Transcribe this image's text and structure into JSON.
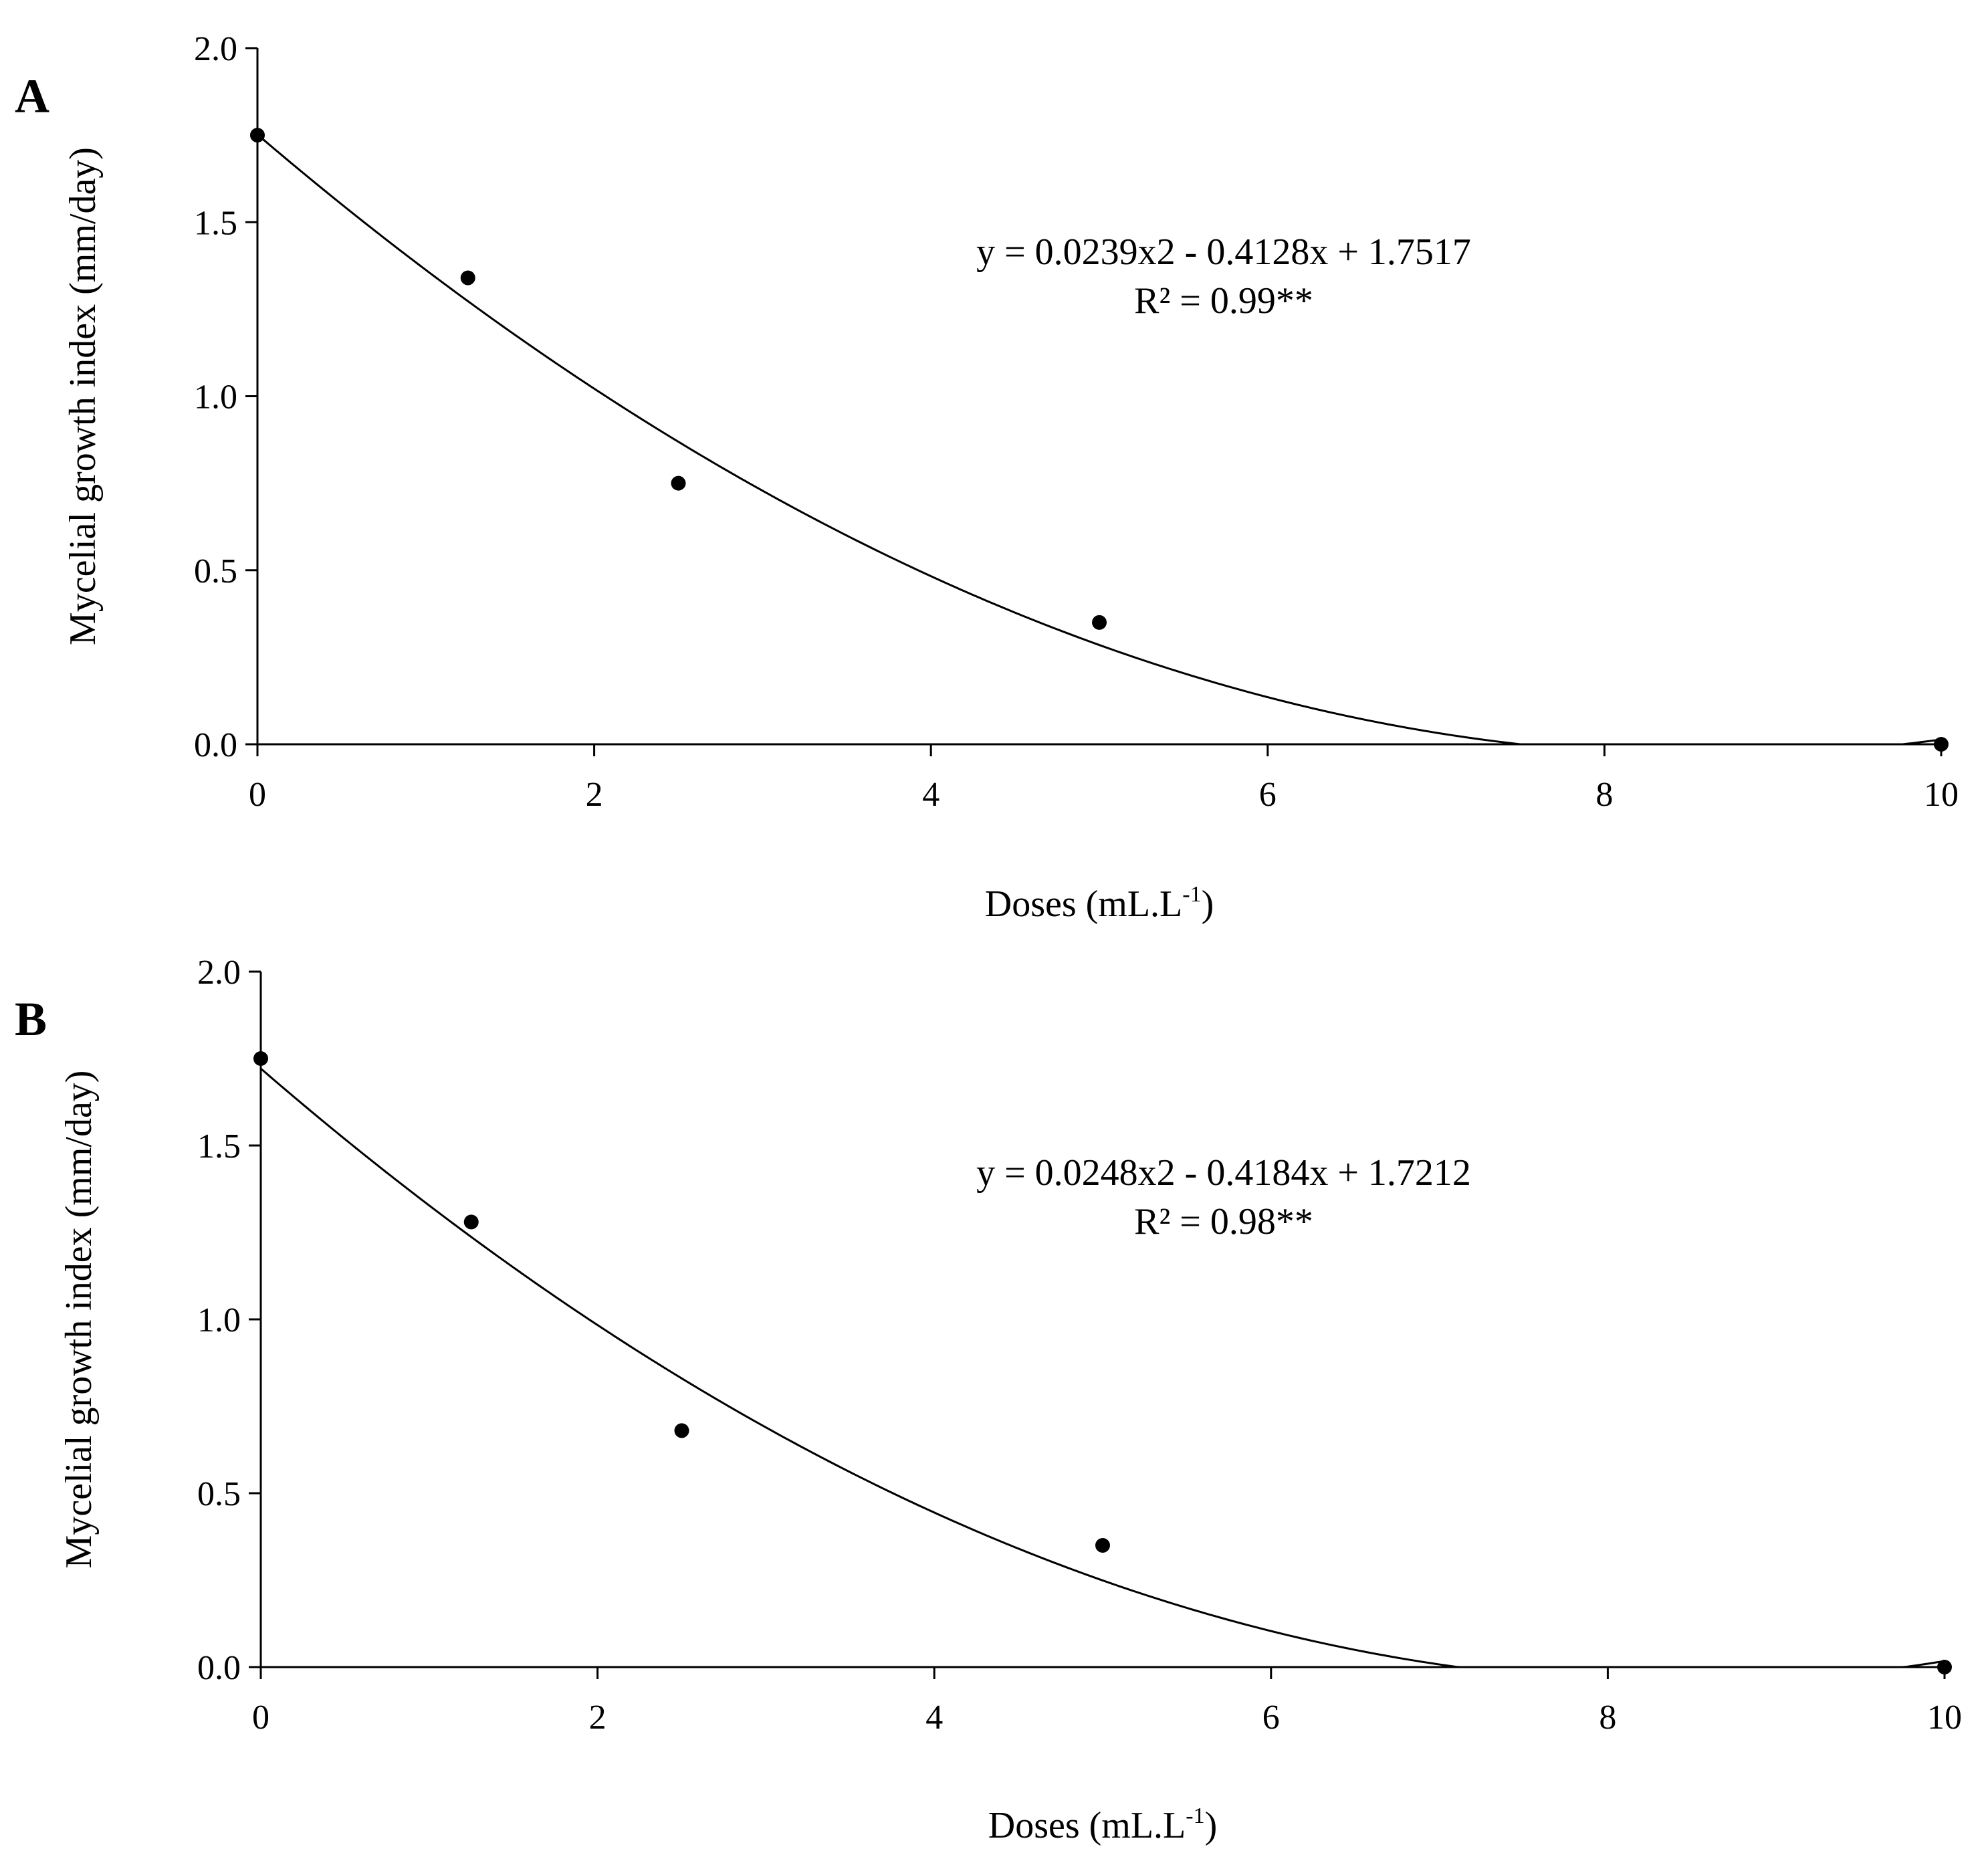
{
  "chart_data": [
    {
      "type": "scatter",
      "panel_label": "A",
      "title": "",
      "xlabel": "Doses (mL.L",
      "xlabel_superscript": "-1",
      "xlabel_suffix": ")",
      "ylabel": "Mycelial growth index (mm/day)",
      "xlim": [
        0,
        10
      ],
      "ylim": [
        0,
        2.0
      ],
      "x_ticks": [
        "0",
        "2",
        "4",
        "6",
        "8",
        "10"
      ],
      "y_ticks": [
        "0.0",
        "0.5",
        "1.0",
        "1.5",
        "2.0"
      ],
      "grid": false,
      "series": [
        {
          "x": [
            0,
            1.25,
            2.5,
            5,
            10
          ],
          "y": [
            1.75,
            1.34,
            0.75,
            0.35,
            0.0
          ]
        }
      ],
      "trendline": {
        "type": "polynomial",
        "coefficients": [
          0.0239,
          -0.4128,
          1.7517
        ],
        "floor": 0
      },
      "annotations": [
        "y = 0.0239x2 - 0.4128x + 1.7517",
        "R² = 0.99**"
      ]
    },
    {
      "type": "scatter",
      "panel_label": "B",
      "title": "",
      "xlabel": "Doses (mL.L",
      "xlabel_superscript": "-1",
      "xlabel_suffix": ")",
      "ylabel": "Mycelial growth index (mm/day)",
      "xlim": [
        0,
        10
      ],
      "ylim": [
        0,
        2.0
      ],
      "x_ticks": [
        "0",
        "2",
        "4",
        "6",
        "8",
        "10"
      ],
      "y_ticks": [
        "0.0",
        "0.5",
        "1.0",
        "1.5",
        "2.0"
      ],
      "grid": false,
      "series": [
        {
          "x": [
            0,
            1.25,
            2.5,
            5,
            10
          ],
          "y": [
            1.75,
            1.28,
            0.68,
            0.35,
            0.0
          ]
        }
      ],
      "trendline": {
        "type": "polynomial",
        "coefficients": [
          0.0248,
          -0.4184,
          1.7212
        ],
        "floor": 0
      },
      "annotations": [
        "y = 0.0248x2 - 0.4184x + 1.7212",
        "R² = 0.98**"
      ]
    }
  ]
}
